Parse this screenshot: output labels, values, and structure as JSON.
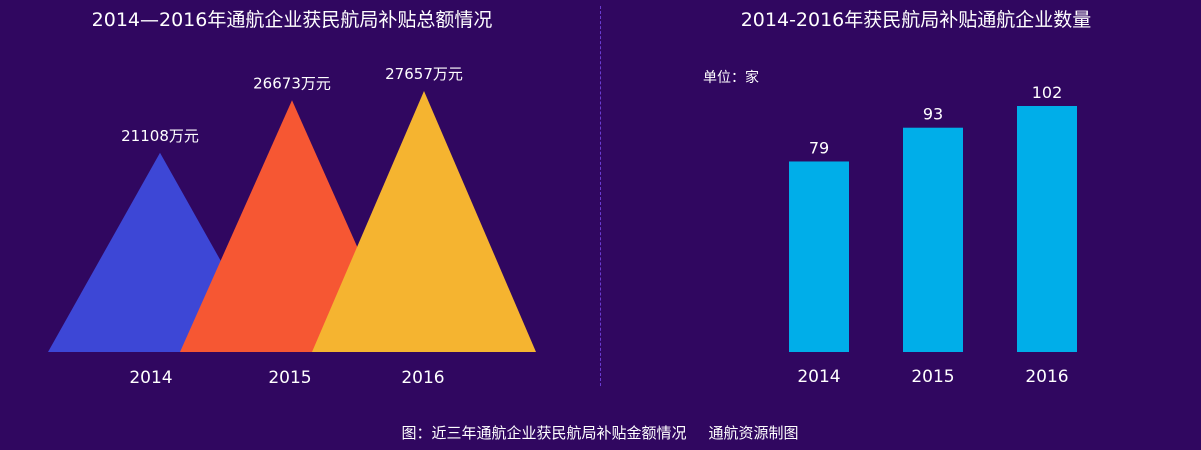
{
  "caption": {
    "text": "图：近三年通航企业获民航局补贴金额情况",
    "source": "通航资源制图"
  },
  "chart_data": [
    {
      "type": "triangle",
      "title": "2014—2016年通航企业获民航局补贴总额情况",
      "categories": [
        "2014",
        "2015",
        "2016"
      ],
      "values": [
        21108,
        26673,
        27657
      ],
      "value_labels": [
        "21108万元",
        "26673万元",
        "27657万元"
      ],
      "unit": "万元",
      "colors": [
        "#3d47d6",
        "#f65733",
        "#f5b430"
      ],
      "grid": false,
      "legend": "none"
    },
    {
      "type": "bar",
      "title": "2014-2016年获民航局补贴通航企业数量",
      "unit_label": "单位：家",
      "categories": [
        "2014",
        "2015",
        "2016"
      ],
      "values": [
        79,
        93,
        102
      ],
      "color": "#00aee9",
      "grid": false,
      "legend": "none"
    }
  ]
}
